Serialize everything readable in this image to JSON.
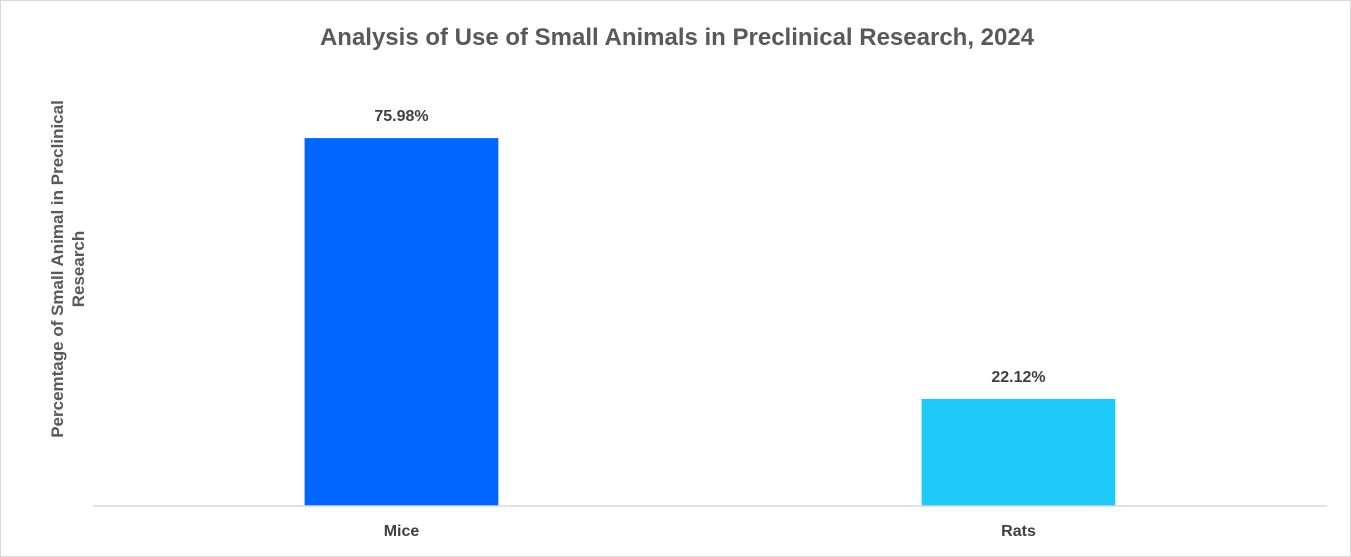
{
  "chart_data": {
    "type": "bar",
    "title": "Analysis of Use of Small Animals in Preclinical Research, 2024",
    "xlabel": "",
    "ylabel": "Percemtage of Small Animal in Preclinical Research",
    "ylabel_lines": [
      "Percemtage of Small Animal in Preclinical",
      "Research"
    ],
    "categories": [
      "Mice",
      "Rats"
    ],
    "values": [
      75.98,
      22.12
    ],
    "value_labels": [
      "75.98%",
      "22.12%"
    ],
    "colors": [
      "#0066ff",
      "#1ec8f7"
    ],
    "ylim": [
      0,
      76
    ],
    "grid": false,
    "legend": "none"
  }
}
